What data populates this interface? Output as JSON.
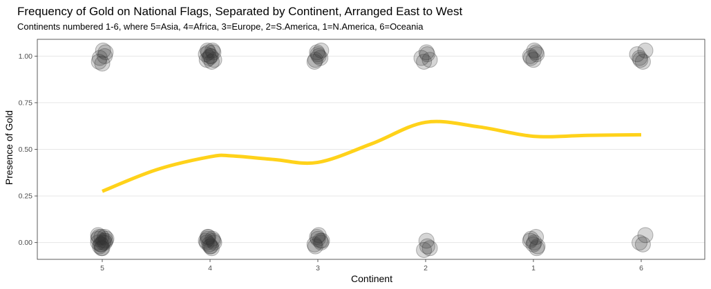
{
  "chart_data": {
    "type": "scatter",
    "title": "Frequency of Gold on National Flags, Separated by Continent, Arranged East to West",
    "subtitle": "Continents numbered 1-6, where 5=Asia, 4=Africa, 3=Europe, 2=S.America, 1=N.America, 6=Oceania",
    "xlabel": "Continent",
    "ylabel": "Presence of Gold",
    "categories": [
      "5",
      "4",
      "3",
      "2",
      "1",
      "6"
    ],
    "y_ticks": [
      "0.00",
      "0.25",
      "0.50",
      "0.75",
      "1.00"
    ],
    "ylim": [
      -0.09,
      1.09
    ],
    "grid": true,
    "legend": "none",
    "points": {
      "5": {
        "y1": [
          0.04,
          0.03,
          1.0,
          0.97,
          0.96,
          1.02,
          0.99,
          1.03
        ],
        "y0": [
          0.02,
          -0.01,
          0.0,
          0.03,
          -0.03,
          0.01,
          -0.02,
          0.0,
          0.02,
          -0.01,
          0.01,
          0.0,
          -0.03,
          0.03
        ]
      },
      "4": {
        "y1": [
          1.03,
          1.0,
          0.98,
          1.02,
          0.97,
          1.01,
          0.99,
          1.03,
          0.98,
          1.0,
          1.02
        ],
        "y0": [
          0.02,
          -0.02,
          0.0,
          0.03,
          -0.03,
          0.01,
          -0.01,
          0.02,
          0.0,
          -0.02,
          0.01,
          0.03
        ]
      },
      "3": {
        "y1": [
          1.02,
          0.99,
          0.97,
          1.01,
          1.03,
          0.98,
          1.0
        ],
        "y0": [
          0.03,
          0.01,
          -0.01,
          0.02,
          0.0,
          -0.02,
          0.04,
          0.01
        ]
      },
      "2": {
        "y1": [
          1.02,
          0.98,
          0.97,
          1.01,
          0.99
        ],
        "y0": [
          0.01,
          -0.03,
          -0.04,
          -0.02
        ]
      },
      "1": {
        "y1": [
          1.02,
          1.0,
          0.98,
          1.01,
          0.99,
          1.03
        ],
        "y0": [
          0.03,
          0.01,
          -0.01,
          -0.03,
          0.02,
          0.0,
          -0.02
        ]
      },
      "6": {
        "y1": [
          1.03,
          0.99,
          0.97,
          1.01,
          0.98
        ],
        "y0": [
          0.04,
          0.0,
          -0.01
        ]
      }
    },
    "smooth_line": {
      "color": "#FFD21A",
      "x": [
        0,
        0.5,
        1,
        1.2,
        1.6,
        2,
        2.5,
        3,
        3.5,
        4,
        4.5,
        5
      ],
      "y": [
        0.275,
        0.39,
        0.46,
        0.465,
        0.445,
        0.43,
        0.53,
        0.645,
        0.62,
        0.57,
        0.575,
        0.578
      ]
    },
    "point_color": "#333333"
  }
}
